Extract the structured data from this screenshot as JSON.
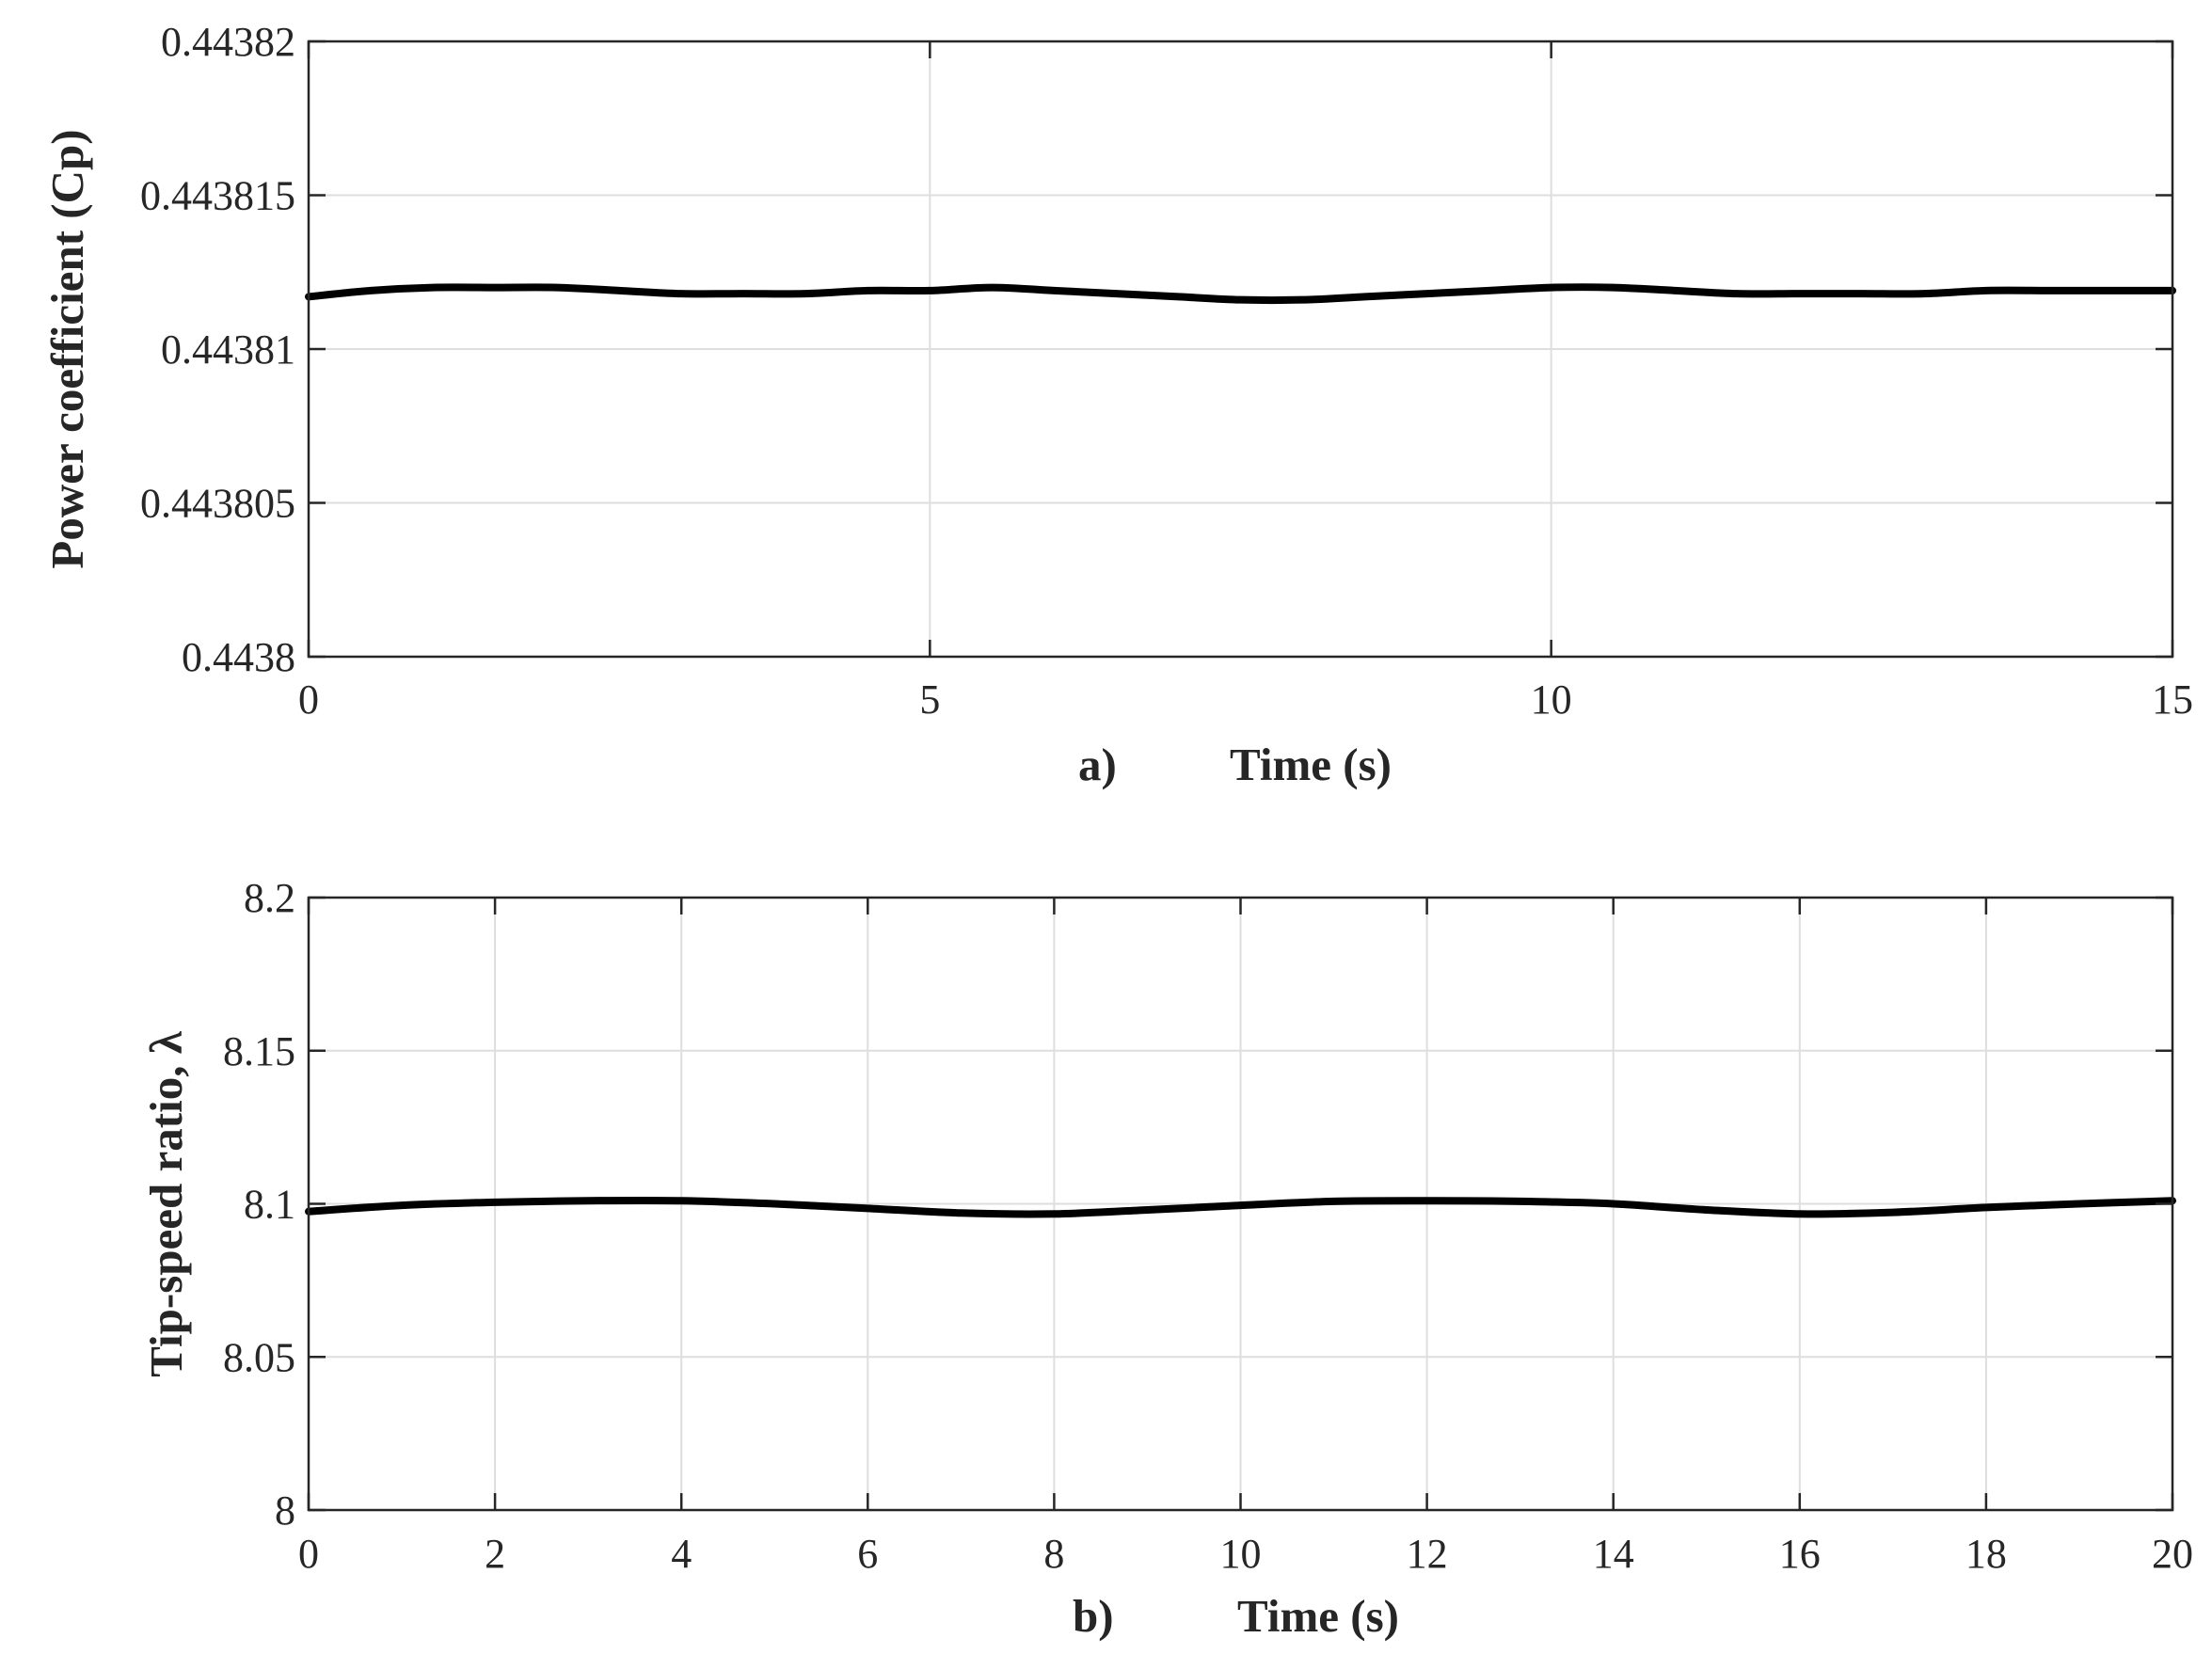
{
  "chart_data": [
    {
      "type": "line",
      "panel_label": "a)",
      "xlabel": "Time (s)",
      "ylabel": "Power coefficient (Cp)",
      "xlim": [
        0,
        15
      ],
      "ylim": [
        0.4438,
        0.44382
      ],
      "xticks": [
        0,
        5,
        10,
        15
      ],
      "xtick_labels": [
        "0",
        "5",
        "10",
        "15"
      ],
      "yticks": [
        0.4438,
        0.443805,
        0.44381,
        0.443815,
        0.44382
      ],
      "ytick_labels": [
        "0.4438",
        "0.443805",
        "0.44381",
        "0.443815",
        "0.44382"
      ],
      "grid": true,
      "series": [
        {
          "color": "#000000",
          "x": [
            0,
            0.5,
            1,
            1.5,
            2,
            2.5,
            3,
            3.5,
            4,
            4.5,
            5,
            5.5,
            6,
            6.5,
            7,
            7.5,
            8,
            8.5,
            9,
            9.5,
            10,
            10.5,
            11,
            11.5,
            12,
            12.5,
            13,
            13.5,
            14,
            14.5,
            15
          ],
          "values": [
            0.4438117,
            0.4438119,
            0.443812,
            0.443812,
            0.443812,
            0.4438119,
            0.4438118,
            0.4438118,
            0.4438118,
            0.4438119,
            0.4438119,
            0.443812,
            0.4438119,
            0.4438118,
            0.4438117,
            0.4438116,
            0.4438116,
            0.4438117,
            0.4438118,
            0.4438119,
            0.443812,
            0.443812,
            0.4438119,
            0.4438118,
            0.4438118,
            0.4438118,
            0.4438118,
            0.4438119,
            0.4438119,
            0.4438119,
            0.4438119
          ]
        }
      ]
    },
    {
      "type": "line",
      "panel_label": "b)",
      "xlabel": "Time (s)",
      "ylabel": "Tip-speed ratio, λ",
      "xlim": [
        0,
        20
      ],
      "ylim": [
        8,
        8.2
      ],
      "xticks": [
        0,
        2,
        4,
        6,
        8,
        10,
        12,
        14,
        16,
        18,
        20
      ],
      "xtick_labels": [
        "0",
        "2",
        "4",
        "6",
        "8",
        "10",
        "12",
        "14",
        "16",
        "18",
        "20"
      ],
      "yticks": [
        8,
        8.05,
        8.1,
        8.15,
        8.2
      ],
      "ytick_labels": [
        "8",
        "8.05",
        "8.1",
        "8.15",
        "8.2"
      ],
      "grid": true,
      "series": [
        {
          "color": "#000000",
          "x": [
            0,
            1,
            2,
            3,
            4,
            5,
            6,
            7,
            8,
            9,
            10,
            11,
            12,
            13,
            14,
            15,
            16,
            17,
            18,
            19,
            20
          ],
          "values": [
            8.0975,
            8.0995,
            8.1005,
            8.101,
            8.101,
            8.1,
            8.0985,
            8.097,
            8.0967,
            8.098,
            8.0995,
            8.1008,
            8.101,
            8.1008,
            8.1,
            8.098,
            8.0967,
            8.0972,
            8.0988,
            8.1,
            8.101
          ]
        }
      ]
    }
  ]
}
